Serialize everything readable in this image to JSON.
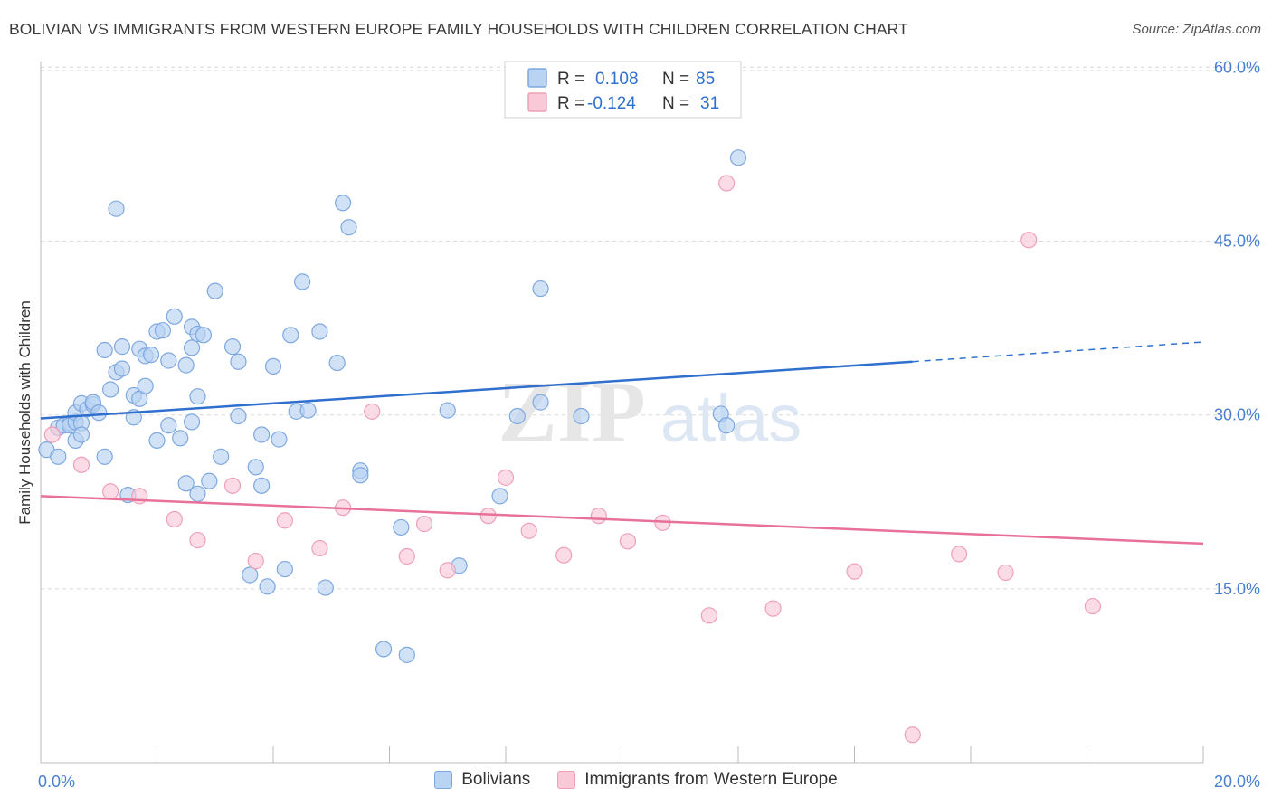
{
  "title": "BOLIVIAN VS IMMIGRANTS FROM WESTERN EUROPE FAMILY HOUSEHOLDS WITH CHILDREN CORRELATION CHART",
  "source": "Source: ZipAtlas.com",
  "watermark": {
    "part1": "ZIP",
    "part2": "atlas"
  },
  "colors": {
    "blue_fill": "#b9d3f3",
    "blue_stroke": "#7ea8e0",
    "blue_line": "#2f6fce",
    "pink_fill": "#f9c9d8",
    "pink_stroke": "#eea0b8",
    "pink_line": "#e8719a",
    "tick_label": "#4a7fcf",
    "grid": "#d9d9d9"
  },
  "legend_top": [
    {
      "r_label": "R =",
      "r_value": "0.108",
      "n_label": "N =",
      "n_value": "85"
    },
    {
      "r_label": "R =",
      "r_value": "-0.124",
      "n_label": "N =",
      "n_value": "31"
    }
  ],
  "chart_data": {
    "type": "scatter",
    "title": "BOLIVIAN VS IMMIGRANTS FROM WESTERN EUROPE FAMILY HOUSEHOLDS WITH CHILDREN CORRELATION CHART",
    "xlabel": "",
    "ylabel": "Family Households with Children",
    "xlim": [
      0,
      20
    ],
    "ylim": [
      0,
      60.5
    ],
    "x_tick_labels": [
      {
        "value": 0,
        "label": "0.0%"
      },
      {
        "value": 20,
        "label": "20.0%"
      }
    ],
    "y_tick_labels": [
      {
        "value": 15,
        "label": "15.0%"
      },
      {
        "value": 30,
        "label": "30.0%"
      },
      {
        "value": 45,
        "label": "45.0%"
      },
      {
        "value": 60,
        "label": "60.0%"
      }
    ],
    "x_minor_ticks": [
      0,
      2,
      4,
      6,
      8,
      10,
      12,
      14,
      16,
      18,
      20
    ],
    "grid": true,
    "legend_position": "bottom",
    "series": [
      {
        "name": "Bolivians",
        "r": 0.108,
        "n": 85,
        "trend": {
          "x0": 0,
          "y0": 29.7,
          "x1": 15,
          "y1": 34.6,
          "dash_to_x": 20,
          "dash_to_y": 36.3
        },
        "points": [
          [
            0.1,
            27.0
          ],
          [
            0.3,
            28.9
          ],
          [
            0.3,
            26.4
          ],
          [
            0.4,
            29.1
          ],
          [
            0.5,
            29.3
          ],
          [
            0.5,
            29.1
          ],
          [
            0.6,
            29.4
          ],
          [
            0.6,
            30.2
          ],
          [
            0.6,
            27.8
          ],
          [
            0.7,
            29.3
          ],
          [
            0.7,
            28.3
          ],
          [
            0.7,
            31.0
          ],
          [
            0.8,
            30.5
          ],
          [
            0.9,
            30.9
          ],
          [
            0.9,
            31.1
          ],
          [
            1.0,
            30.2
          ],
          [
            1.1,
            35.6
          ],
          [
            1.1,
            26.4
          ],
          [
            1.2,
            32.2
          ],
          [
            1.3,
            47.8
          ],
          [
            1.3,
            33.7
          ],
          [
            1.4,
            35.9
          ],
          [
            1.4,
            34.0
          ],
          [
            1.5,
            23.1
          ],
          [
            1.6,
            29.8
          ],
          [
            1.6,
            31.7
          ],
          [
            1.7,
            35.7
          ],
          [
            1.7,
            31.4
          ],
          [
            1.8,
            35.1
          ],
          [
            1.8,
            32.5
          ],
          [
            1.9,
            35.2
          ],
          [
            2.0,
            27.8
          ],
          [
            2.0,
            37.2
          ],
          [
            2.1,
            37.3
          ],
          [
            2.2,
            29.1
          ],
          [
            2.2,
            34.7
          ],
          [
            2.3,
            38.5
          ],
          [
            2.4,
            28.0
          ],
          [
            2.5,
            34.3
          ],
          [
            2.5,
            24.1
          ],
          [
            2.6,
            29.4
          ],
          [
            2.6,
            35.8
          ],
          [
            2.6,
            37.6
          ],
          [
            2.7,
            31.6
          ],
          [
            2.7,
            37.0
          ],
          [
            2.7,
            23.2
          ],
          [
            2.8,
            36.9
          ],
          [
            2.9,
            24.3
          ],
          [
            3.0,
            40.7
          ],
          [
            3.1,
            26.4
          ],
          [
            3.3,
            35.9
          ],
          [
            3.4,
            29.9
          ],
          [
            3.4,
            34.6
          ],
          [
            3.6,
            16.2
          ],
          [
            3.7,
            25.5
          ],
          [
            3.8,
            23.9
          ],
          [
            3.8,
            28.3
          ],
          [
            3.9,
            15.2
          ],
          [
            4.0,
            34.2
          ],
          [
            4.1,
            27.9
          ],
          [
            4.2,
            16.7
          ],
          [
            4.3,
            36.9
          ],
          [
            4.4,
            30.3
          ],
          [
            4.5,
            41.5
          ],
          [
            4.6,
            30.4
          ],
          [
            4.8,
            37.2
          ],
          [
            4.9,
            15.1
          ],
          [
            5.1,
            34.5
          ],
          [
            5.2,
            48.3
          ],
          [
            5.3,
            46.2
          ],
          [
            5.5,
            25.2
          ],
          [
            5.5,
            24.8
          ],
          [
            5.9,
            9.8
          ],
          [
            6.2,
            20.3
          ],
          [
            6.3,
            9.3
          ],
          [
            7.0,
            30.4
          ],
          [
            7.2,
            17.0
          ],
          [
            7.9,
            23.0
          ],
          [
            8.2,
            29.9
          ],
          [
            8.6,
            40.9
          ],
          [
            8.6,
            31.1
          ],
          [
            9.3,
            29.9
          ],
          [
            11.7,
            30.1
          ],
          [
            11.8,
            29.1
          ],
          [
            12.0,
            52.2
          ]
        ]
      },
      {
        "name": "Immigrants from Western Europe",
        "r": -0.124,
        "n": 31,
        "trend": {
          "x0": 0,
          "y0": 23.0,
          "x1": 20,
          "y1": 18.9
        },
        "points": [
          [
            0.2,
            28.3
          ],
          [
            0.7,
            25.7
          ],
          [
            1.2,
            23.4
          ],
          [
            1.7,
            23.0
          ],
          [
            2.3,
            21.0
          ],
          [
            2.7,
            19.2
          ],
          [
            3.3,
            23.9
          ],
          [
            3.7,
            17.4
          ],
          [
            4.2,
            20.9
          ],
          [
            4.8,
            18.5
          ],
          [
            5.2,
            22.0
          ],
          [
            5.7,
            30.3
          ],
          [
            6.3,
            17.8
          ],
          [
            6.6,
            20.6
          ],
          [
            7.0,
            16.6
          ],
          [
            7.7,
            21.3
          ],
          [
            8.0,
            24.6
          ],
          [
            8.4,
            20.0
          ],
          [
            9.0,
            17.9
          ],
          [
            9.6,
            21.3
          ],
          [
            10.1,
            19.1
          ],
          [
            10.7,
            20.7
          ],
          [
            11.5,
            12.7
          ],
          [
            11.8,
            50.0
          ],
          [
            12.6,
            13.3
          ],
          [
            14.0,
            16.5
          ],
          [
            15.0,
            2.4
          ],
          [
            15.8,
            18.0
          ],
          [
            16.6,
            16.4
          ],
          [
            17.0,
            45.1
          ],
          [
            18.1,
            13.5
          ]
        ]
      }
    ]
  }
}
